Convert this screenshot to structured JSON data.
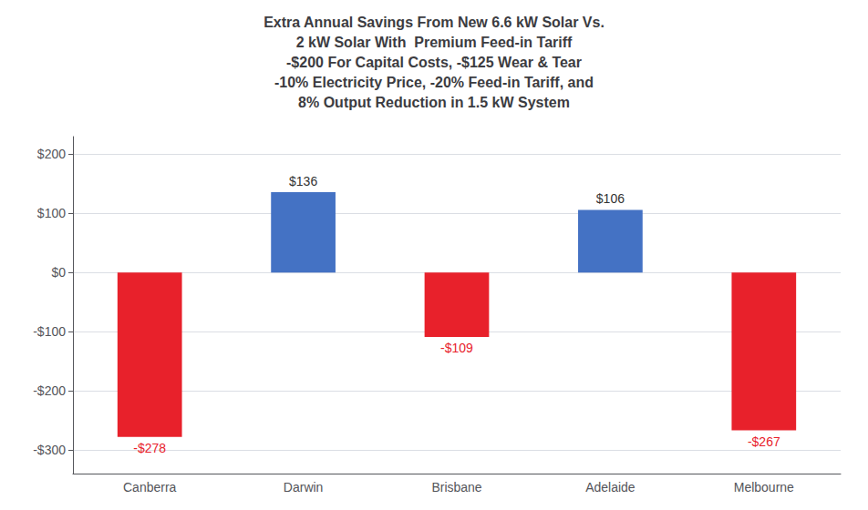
{
  "chart_data": {
    "type": "bar",
    "title": "Extra Annual Savings From New 6.6 kW Solar Vs.\n2 kW Solar With  Premium Feed-in Tariff\n-$200 For Capital Costs, -$125 Wear & Tear\n-10% Electricity Price, -20% Feed-in Tariff, and\n8% Output Reduction in 1.5 kW System",
    "categories": [
      "Canberra",
      "Darwin",
      "Brisbane",
      "Adelaide",
      "Melbourne"
    ],
    "values": [
      -278,
      136,
      -109,
      106,
      -267
    ],
    "value_labels": [
      "-$278",
      "$136",
      "-$109",
      "$106",
      "-$267"
    ],
    "colors": [
      "#e8212b",
      "#4472c4",
      "#e8212b",
      "#4472c4",
      "#e8212b"
    ],
    "ylim": [
      -340,
      230
    ],
    "yticks": [
      {
        "value": -300,
        "label": "-$300"
      },
      {
        "value": -200,
        "label": "-$200"
      },
      {
        "value": -100,
        "label": "-$100"
      },
      {
        "value": 0,
        "label": "$0"
      },
      {
        "value": 100,
        "label": "$100"
      },
      {
        "value": 200,
        "label": "$200"
      }
    ],
    "grid": true,
    "data_labels": true
  }
}
